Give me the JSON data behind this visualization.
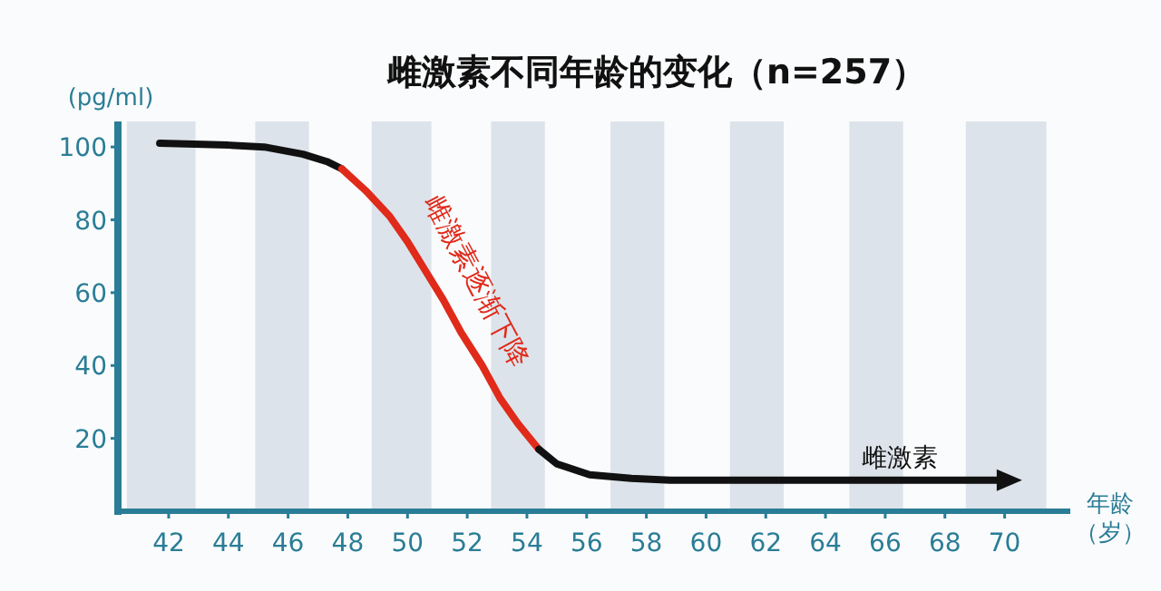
{
  "chart_data": {
    "type": "line",
    "title": "雌激素不同年龄的变化（n=257）",
    "ylabel": "(pg/ml)",
    "xlabel": "年龄（岁）",
    "xlim": [
      40.3,
      72.2
    ],
    "xticks": [
      42,
      44,
      46,
      48,
      50,
      52,
      54,
      56,
      58,
      60,
      62,
      64,
      66,
      68,
      70
    ],
    "ylim": [
      0,
      107
    ],
    "yticks": [
      20,
      40,
      60,
      80,
      100
    ],
    "grid": false,
    "series": [
      {
        "color": "#111111",
        "x": [
          41.7,
          44,
          45.2,
          46.5,
          47.3,
          47.8
        ],
        "values": [
          101,
          100.5,
          100,
          98,
          96,
          94
        ]
      },
      {
        "color": "#e02a1a",
        "x": [
          47.8,
          48.6,
          49.4,
          50,
          50.6,
          51.2,
          51.8,
          52.5,
          53.1,
          53.7,
          54.4
        ],
        "values": [
          94,
          88,
          81,
          74,
          66,
          58,
          49,
          40,
          31,
          24,
          17
        ]
      },
      {
        "color": "#111111",
        "x": [
          54.4,
          55,
          56.1,
          57.5,
          58.8,
          62,
          66,
          70.1
        ],
        "values": [
          17,
          13,
          10,
          9,
          8.5,
          8.5,
          8.5,
          8.5
        ]
      }
    ],
    "bands": [
      {
        "axis": "x",
        "from": 40.6,
        "to": 42.9,
        "color": "#dde3ea"
      },
      {
        "axis": "x",
        "from": 44.9,
        "to": 46.7,
        "color": "#dde3ea"
      },
      {
        "axis": "x",
        "from": 48.8,
        "to": 50.8,
        "color": "#dde3ea"
      },
      {
        "axis": "x",
        "from": 52.8,
        "to": 54.6,
        "color": "#dde3ea"
      },
      {
        "axis": "x",
        "from": 56.8,
        "to": 58.6,
        "color": "#dde3ea"
      },
      {
        "axis": "x",
        "from": 60.8,
        "to": 62.6,
        "color": "#dde3ea"
      },
      {
        "axis": "x",
        "from": 64.8,
        "to": 66.6,
        "color": "#dde3ea"
      },
      {
        "axis": "x",
        "from": 68.7,
        "to": 71.4,
        "color": "#dde3ea"
      }
    ],
    "annotations": [
      "雌激素逐渐下降",
      {
        "text": "雌激素",
        "x": 66.5,
        "y": 8.5
      }
    ]
  }
}
